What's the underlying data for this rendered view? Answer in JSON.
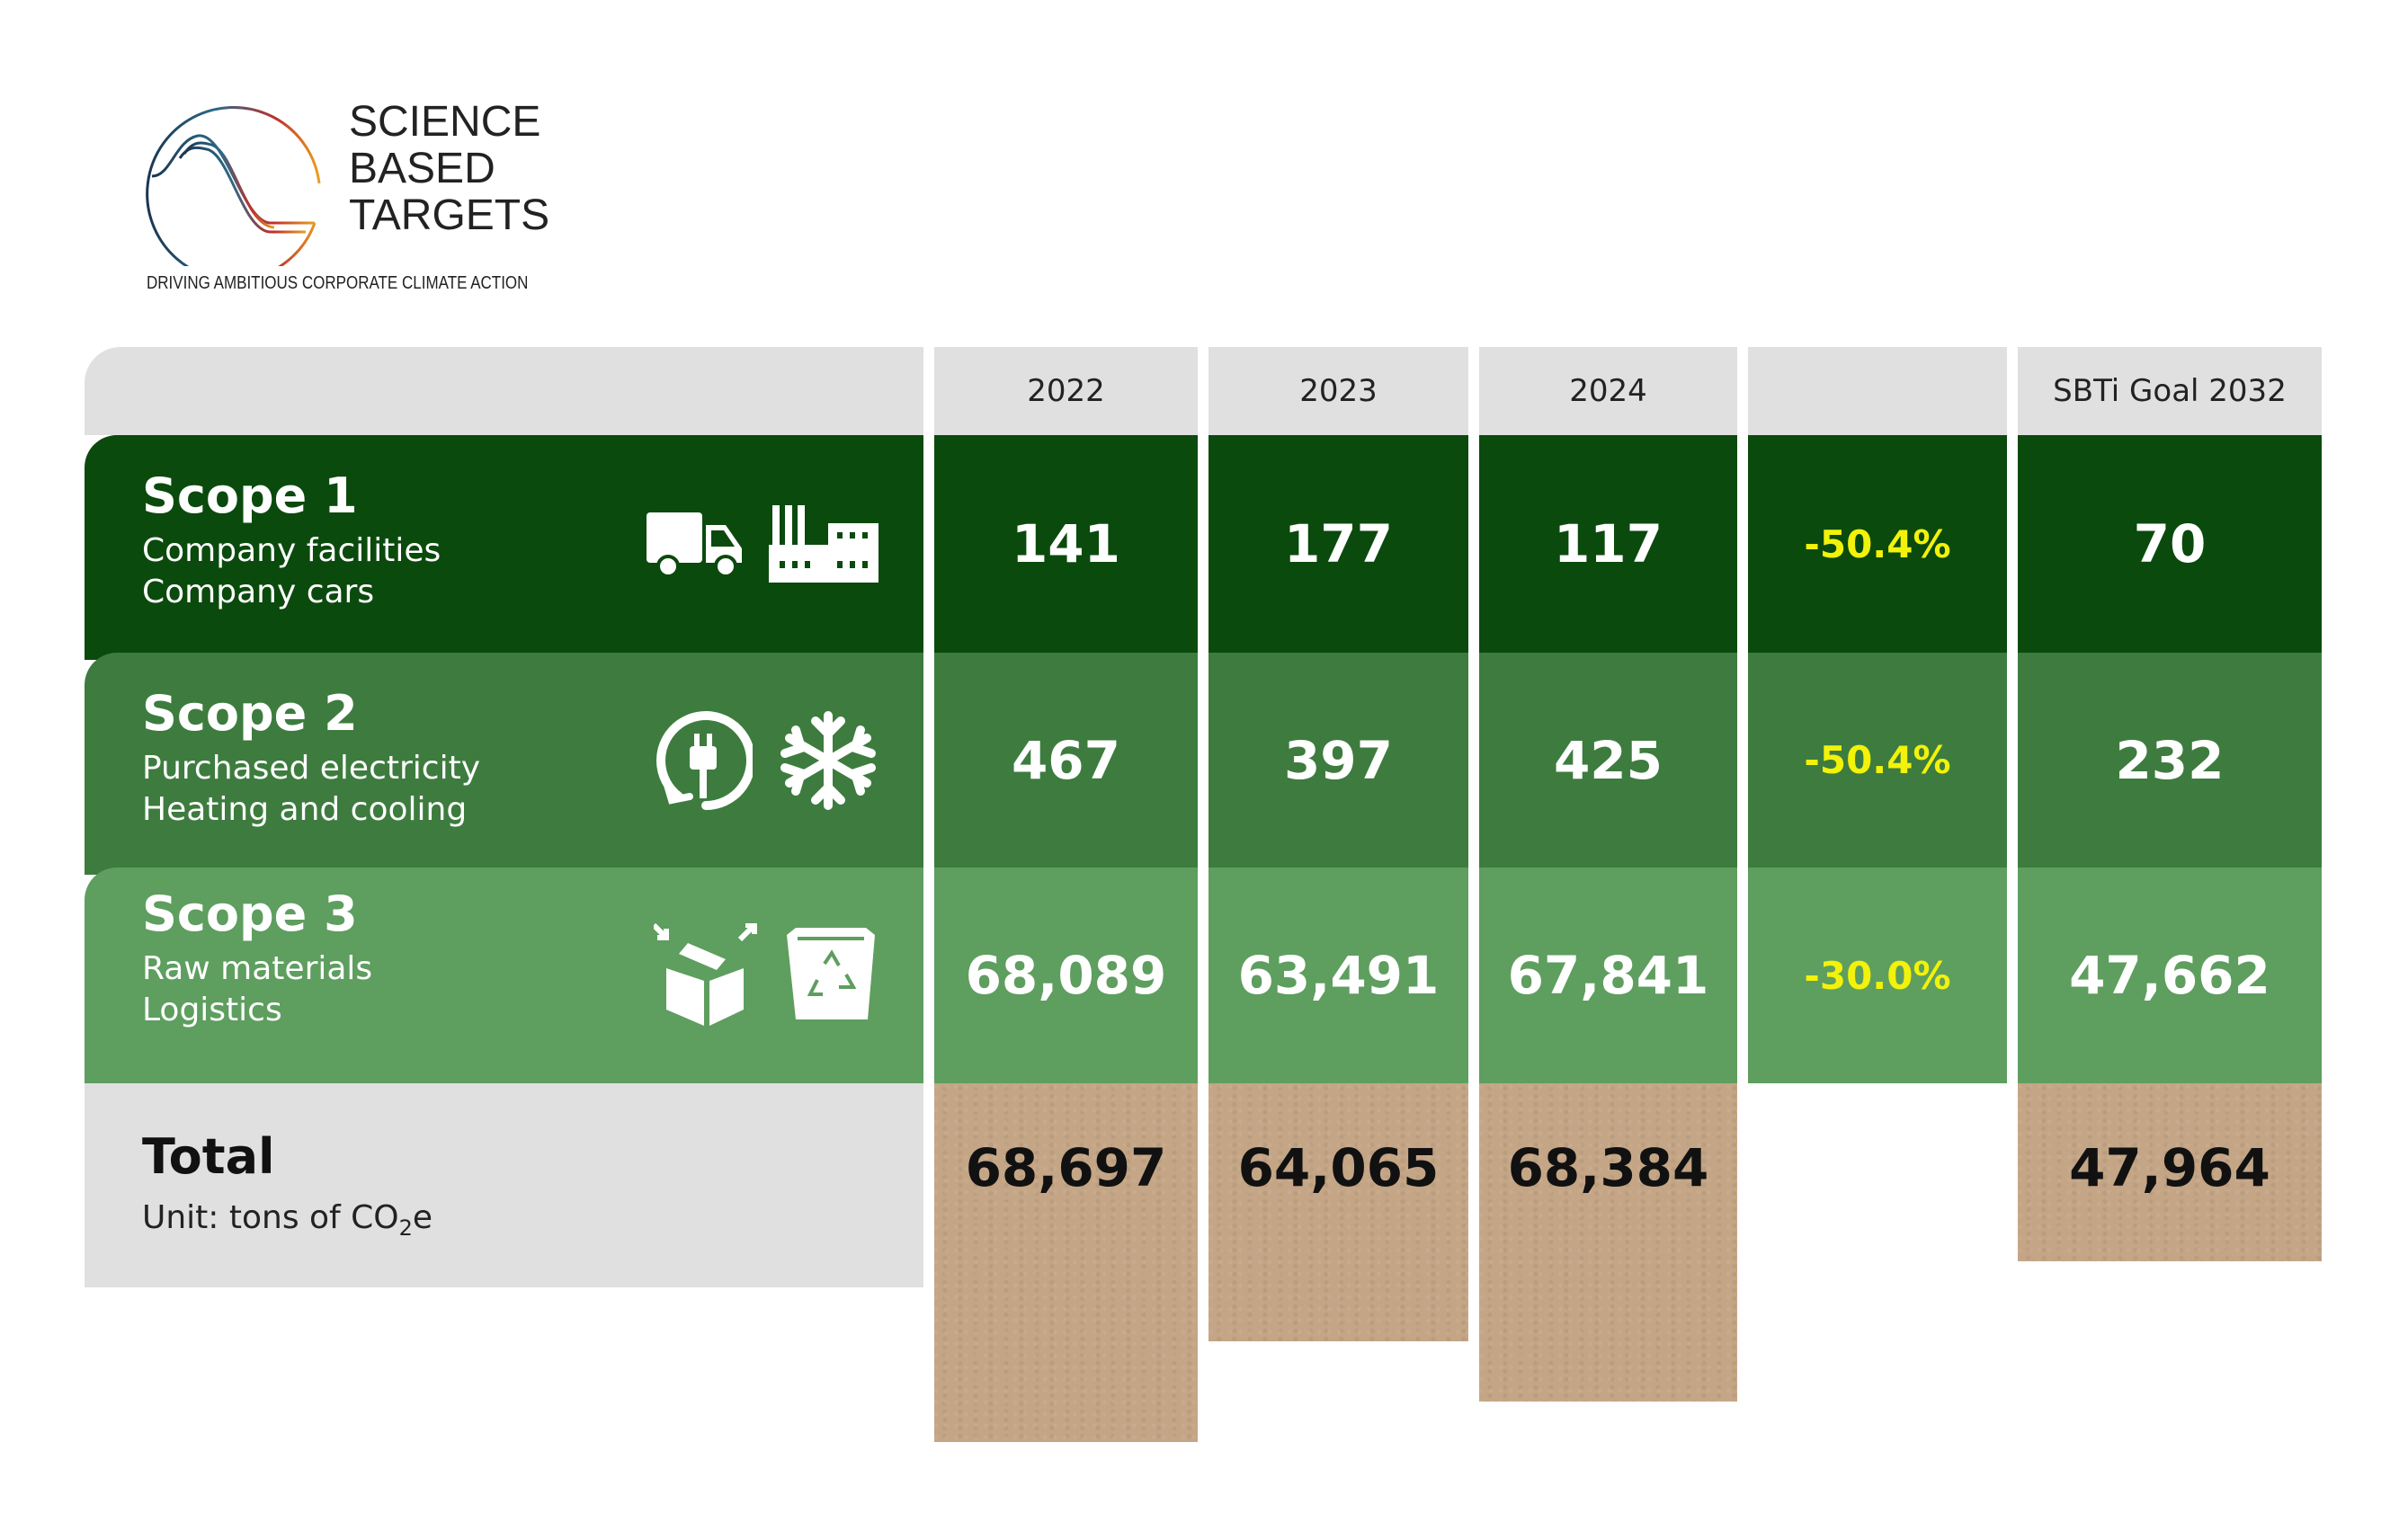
{
  "logo": {
    "lines": [
      "SCIENCE",
      "BASED",
      "TARGETS"
    ],
    "tagline": "DRIVING AMBITIOUS CORPORATE CLIMATE ACTION"
  },
  "columns": [
    "2022",
    "2023",
    "2024",
    "",
    "SBTi Goal 2032"
  ],
  "rows": [
    {
      "title": "Scope 1",
      "lines": [
        "Company facilities",
        "Company cars"
      ],
      "icons": [
        "truck-icon",
        "factory-icon"
      ],
      "values": [
        "141",
        "177",
        "117"
      ],
      "change": "-50.4%",
      "goal": "70",
      "color": "#0b4a0d"
    },
    {
      "title": "Scope 2",
      "lines": [
        "Purchased electricity",
        "Heating and cooling"
      ],
      "icons": [
        "plug-cycle-icon",
        "snowflake-icon"
      ],
      "values": [
        "467",
        "397",
        "425"
      ],
      "change": "-50.4%",
      "goal": "232",
      "color": "#3d7c3e"
    },
    {
      "title": "Scope 3",
      "lines": [
        "Raw materials",
        "Logistics"
      ],
      "icons": [
        "box-icon",
        "recycle-bin-icon"
      ],
      "values": [
        "68,089",
        "63,491",
        "67,841"
      ],
      "change": "-30.0%",
      "goal": "47,662",
      "color": "#5e9e5f"
    }
  ],
  "total": {
    "title": "Total",
    "unit_prefix": "Unit: tons of CO",
    "unit_sub": "2",
    "unit_suffix": "e",
    "values": [
      "68,697",
      "64,065",
      "68,384"
    ],
    "goal": "47,964"
  },
  "colors": {
    "change_text": "#f2f20a",
    "kraft": "#c4a585",
    "header_gray": "#e0e0e0"
  }
}
